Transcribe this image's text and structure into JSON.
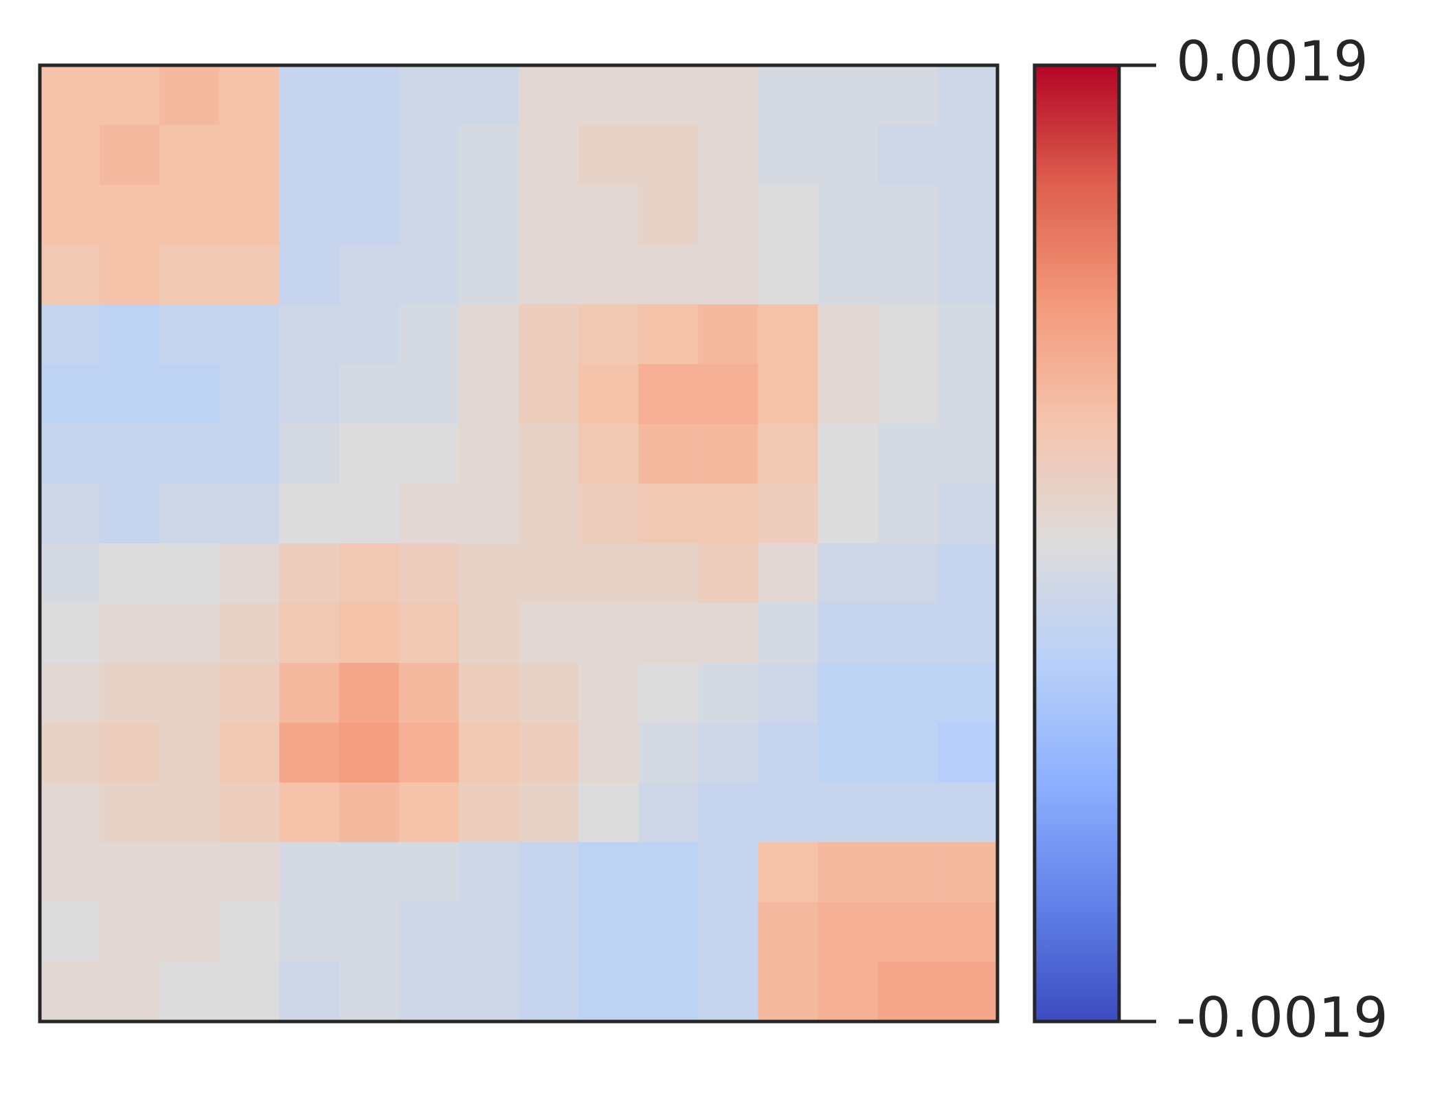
{
  "chart_data": {
    "type": "heatmap",
    "colormap": "coolwarm",
    "zlim": [
      -0.0019,
      0.0019
    ],
    "colorbar_ticks": [
      -0.0019,
      0.0019
    ],
    "z": [
      [
        0.0005,
        0.0005,
        0.0006,
        0.0005,
        -0.0003,
        -0.0003,
        -0.0002,
        -0.0002,
        0.0001,
        0.0001,
        0.0001,
        0.0001,
        -0.0001,
        -0.0001,
        -0.0001,
        -0.0002
      ],
      [
        0.0005,
        0.0006,
        0.0005,
        0.0005,
        -0.0003,
        -0.0003,
        -0.0002,
        -0.0001,
        0.0001,
        0.0002,
        0.0002,
        0.0001,
        -0.0001,
        -0.0001,
        -0.0002,
        -0.0002
      ],
      [
        0.0005,
        0.0005,
        0.0005,
        0.0005,
        -0.0003,
        -0.0003,
        -0.0002,
        -0.0001,
        0.0001,
        0.0001,
        0.0002,
        0.0001,
        0.0,
        -0.0001,
        -0.0001,
        -0.0002
      ],
      [
        0.0004,
        0.0005,
        0.0004,
        0.0004,
        -0.0003,
        -0.0002,
        -0.0002,
        -0.0001,
        0.0001,
        0.0001,
        0.0001,
        0.0001,
        0.0,
        -0.0001,
        -0.0001,
        -0.0002
      ],
      [
        -0.0003,
        -0.0004,
        -0.0003,
        -0.0003,
        -0.0002,
        -0.0002,
        -0.0001,
        0.0001,
        0.0003,
        0.0004,
        0.0005,
        0.0006,
        0.0005,
        0.0001,
        0.0,
        -0.0001
      ],
      [
        -0.0004,
        -0.0004,
        -0.0004,
        -0.0003,
        -0.0002,
        -0.0001,
        -0.0001,
        0.0001,
        0.0003,
        0.0005,
        0.0007,
        0.0007,
        0.0005,
        0.0001,
        0.0,
        -0.0001
      ],
      [
        -0.0003,
        -0.0003,
        -0.0003,
        -0.0003,
        -0.0001,
        0.0,
        0.0,
        0.0001,
        0.0002,
        0.0004,
        0.0006,
        0.0006,
        0.0004,
        0.0,
        -0.0001,
        -0.0001
      ],
      [
        -0.0002,
        -0.0003,
        -0.0002,
        -0.0002,
        0.0,
        0.0,
        0.0001,
        0.0001,
        0.0002,
        0.0003,
        0.0004,
        0.0004,
        0.0003,
        0.0,
        -0.0001,
        -0.0002
      ],
      [
        -0.0001,
        0.0,
        0.0,
        0.0001,
        0.0003,
        0.0004,
        0.0003,
        0.0002,
        0.0002,
        0.0002,
        0.0002,
        0.0003,
        0.0001,
        -0.0002,
        -0.0002,
        -0.0003
      ],
      [
        0.0,
        0.0001,
        0.0001,
        0.0002,
        0.0004,
        0.0005,
        0.0004,
        0.0002,
        0.0001,
        0.0001,
        0.0001,
        0.0001,
        -0.0001,
        -0.0003,
        -0.0003,
        -0.0003
      ],
      [
        0.0001,
        0.0002,
        0.0002,
        0.0003,
        0.0006,
        0.0008,
        0.0006,
        0.0003,
        0.0002,
        0.0001,
        0.0,
        -0.0001,
        -0.0002,
        -0.0004,
        -0.0004,
        -0.0004
      ],
      [
        0.0002,
        0.0003,
        0.0002,
        0.0004,
        0.0008,
        0.0009,
        0.0007,
        0.0004,
        0.0003,
        0.0001,
        -0.0001,
        -0.0002,
        -0.0003,
        -0.0004,
        -0.0004,
        -0.0005
      ],
      [
        0.0001,
        0.0002,
        0.0002,
        0.0003,
        0.0005,
        0.0006,
        0.0005,
        0.0003,
        0.0002,
        0.0,
        -0.0002,
        -0.0003,
        -0.0003,
        -0.0003,
        -0.0003,
        -0.0003
      ],
      [
        0.0001,
        0.0001,
        0.0001,
        0.0001,
        -0.0001,
        -0.0001,
        -0.0001,
        -0.0002,
        -0.0003,
        -0.0004,
        -0.0004,
        -0.0003,
        0.0005,
        0.0006,
        0.0006,
        0.0006
      ],
      [
        0.0,
        0.0001,
        0.0001,
        0.0,
        -0.0001,
        -0.0001,
        -0.0002,
        -0.0002,
        -0.0003,
        -0.0004,
        -0.0004,
        -0.0003,
        0.0006,
        0.0007,
        0.0007,
        0.0007
      ],
      [
        0.0001,
        0.0001,
        0.0,
        0.0,
        -0.0002,
        -0.0001,
        -0.0002,
        -0.0002,
        -0.0003,
        -0.0004,
        -0.0004,
        -0.0003,
        0.0006,
        0.0007,
        0.0008,
        0.0008
      ]
    ]
  }
}
